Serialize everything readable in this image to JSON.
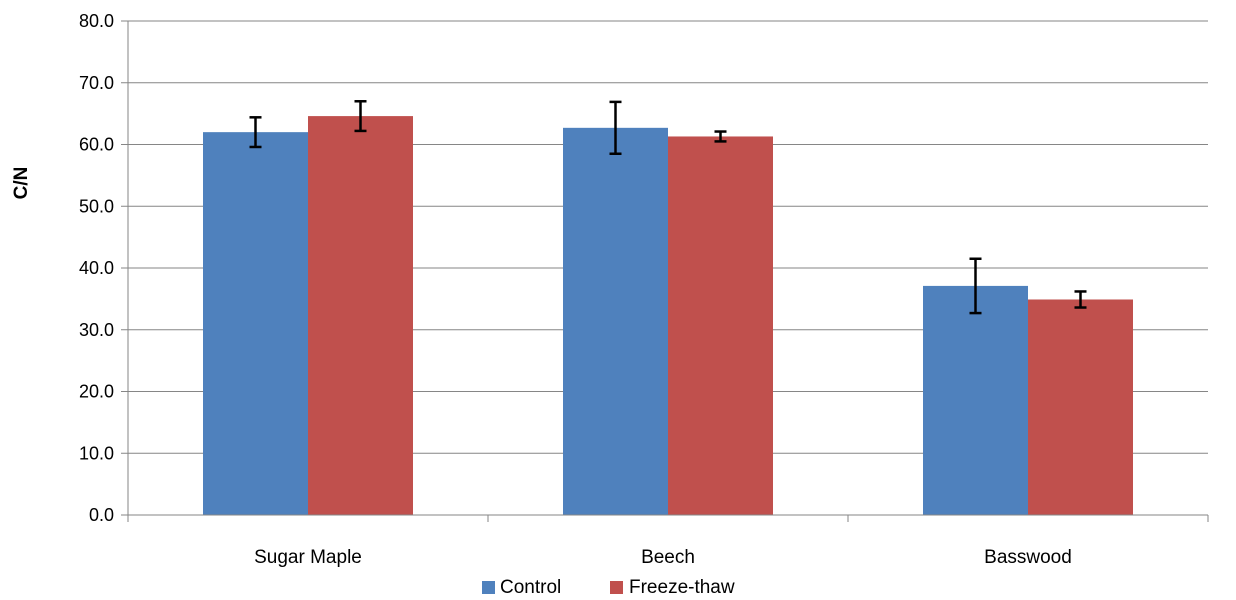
{
  "chart_data": {
    "type": "bar",
    "title": "",
    "xlabel": "",
    "ylabel": "C/N",
    "ylim": [
      0,
      80
    ],
    "ytick_step": 10,
    "ytick_labels": [
      "0.0",
      "10.0",
      "20.0",
      "30.0",
      "40.0",
      "50.0",
      "60.0",
      "70.0",
      "80.0"
    ],
    "grid": true,
    "legend_position": "bottom",
    "categories": [
      "Sugar Maple",
      "Beech",
      "Basswood"
    ],
    "series": [
      {
        "name": "Control",
        "color": "#4F81BD",
        "values": [
          62.0,
          62.7,
          37.1
        ],
        "errors": [
          2.4,
          4.2,
          4.4
        ]
      },
      {
        "name": "Freeze-thaw",
        "color": "#C0504D",
        "values": [
          64.6,
          61.3,
          34.9
        ],
        "errors": [
          2.4,
          0.8,
          1.3
        ]
      }
    ]
  }
}
